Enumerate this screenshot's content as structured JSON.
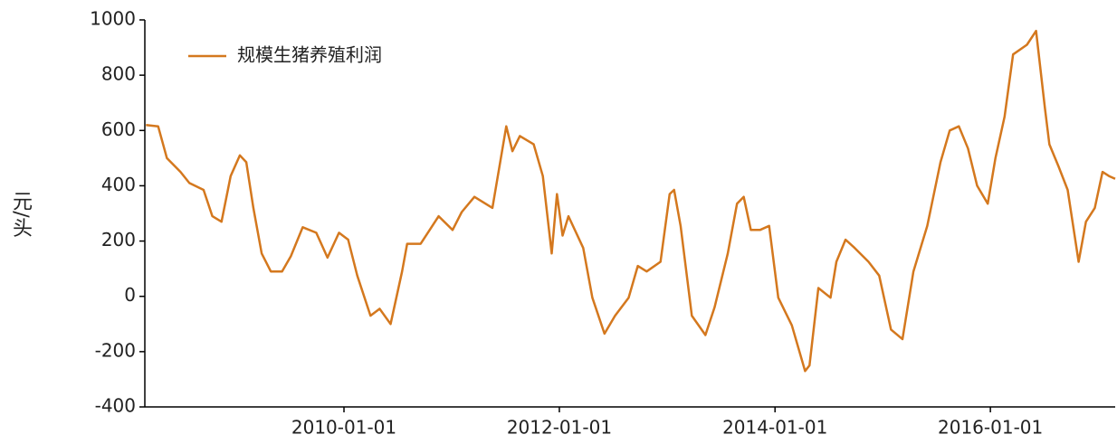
{
  "chart_data": {
    "type": "line",
    "ylabel": "元/头",
    "x": [
      "2008-03-01",
      "2008-04-11",
      "2008-05-11",
      "2008-06-26",
      "2008-07-26",
      "2008-09-12",
      "2008-10-12",
      "2008-11-12",
      "2008-12-13",
      "2009-01-13",
      "2009-02-04",
      "2009-02-28",
      "2009-03-28",
      "2009-04-28",
      "2009-06-05",
      "2009-07-05",
      "2009-08-14",
      "2009-09-29",
      "2009-11-06",
      "2009-12-15",
      "2010-01-15",
      "2010-02-15",
      "2010-04-01",
      "2010-05-02",
      "2010-06-08",
      "2010-07-17",
      "2010-08-03",
      "2010-09-18",
      "2010-11-18",
      "2011-01-04",
      "2011-02-04",
      "2011-03-19",
      "2011-05-19",
      "2011-07-05",
      "2011-07-26",
      "2011-08-20",
      "2011-10-06",
      "2011-11-06",
      "2011-12-06",
      "2011-12-24",
      "2012-01-12",
      "2012-02-01",
      "2012-03-22",
      "2012-04-22",
      "2012-06-02",
      "2012-07-08",
      "2012-08-23",
      "2012-09-23",
      "2012-10-23",
      "2012-12-09",
      "2013-01-09",
      "2013-01-24",
      "2013-02-15",
      "2013-03-25",
      "2013-05-10",
      "2013-06-10",
      "2013-07-25",
      "2013-08-25",
      "2013-09-17",
      "2013-10-11",
      "2013-11-11",
      "2013-12-12",
      "2014-01-12",
      "2014-02-27",
      "2014-04-13",
      "2014-04-28",
      "2014-05-28",
      "2014-07-08",
      "2014-07-28",
      "2014-08-28",
      "2014-09-28",
      "2014-11-14",
      "2014-12-20",
      "2015-01-29",
      "2015-03-09",
      "2015-04-15",
      "2015-06-01",
      "2015-07-16",
      "2015-08-16",
      "2015-09-16",
      "2015-10-17",
      "2015-11-17",
      "2015-12-23",
      "2016-01-18",
      "2016-02-18",
      "2016-03-18",
      "2016-05-04",
      "2016-06-04",
      "2016-07-04",
      "2016-07-19",
      "2016-08-19",
      "2016-09-19",
      "2016-10-26",
      "2016-11-20",
      "2016-12-20",
      "2017-01-15",
      "2017-02-06",
      "2017-02-27"
    ],
    "series": [
      {
        "name": "规模生猪养殖利润",
        "color": "#d4781e",
        "values": [
          620,
          615,
          500,
          450,
          410,
          385,
          290,
          270,
          435,
          510,
          485,
          320,
          155,
          90,
          90,
          145,
          250,
          230,
          140,
          230,
          205,
          75,
          -70,
          -45,
          -100,
          90,
          190,
          190,
          290,
          240,
          305,
          360,
          320,
          615,
          525,
          580,
          550,
          435,
          155,
          370,
          220,
          290,
          175,
          -5,
          -135,
          -70,
          -5,
          110,
          90,
          125,
          370,
          385,
          255,
          -70,
          -140,
          -40,
          155,
          335,
          360,
          240,
          240,
          255,
          -5,
          -105,
          -270,
          -250,
          30,
          -5,
          125,
          205,
          175,
          125,
          75,
          -120,
          -155,
          90,
          255,
          485,
          600,
          615,
          535,
          400,
          335,
          500,
          650,
          875,
          910,
          960,
          680,
          550,
          470,
          385,
          125,
          270,
          320,
          450,
          435,
          425
        ]
      }
    ],
    "xlim": [
      "2008-02-26",
      "2017-02-27"
    ],
    "xticks": [
      "2010-01-01",
      "2012-01-01",
      "2014-01-01",
      "2016-01-01"
    ],
    "ylim": [
      -400,
      1000
    ],
    "yticks": [
      -400,
      -200,
      0,
      200,
      400,
      600,
      800,
      1000
    ],
    "legend": "upper-left"
  }
}
